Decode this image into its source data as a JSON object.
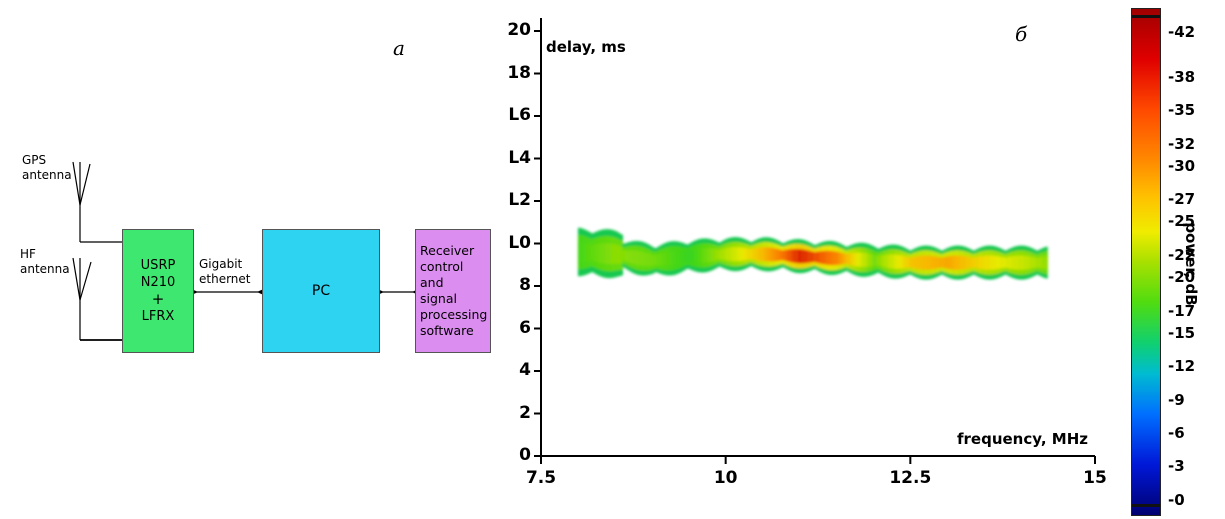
{
  "diagram": {
    "panel_letter": "a",
    "gps_antenna": [
      "GPS",
      "antenna"
    ],
    "hf_antenna": [
      "HF",
      "antenna"
    ],
    "usrp_block": [
      "USRP N210",
      "+",
      "LFRX"
    ],
    "link_label": [
      "Gigabit",
      "ethernet"
    ],
    "pc_block": "PC",
    "software_block": [
      "Receiver",
      "control and",
      "signal",
      "processing",
      "software"
    ],
    "colors": {
      "usrp": "#3ee870",
      "pc": "#2fd3f2",
      "software": "#dc8df0"
    }
  },
  "chart": {
    "panel_letter": "б",
    "y_ticks": [
      "0",
      "2",
      "4",
      "6",
      "8",
      "L0",
      "L2",
      "L4",
      "L6",
      "18",
      "20"
    ],
    "x_ticks": [
      "7.5",
      "10",
      "12.5",
      "15"
    ],
    "colorbar_ticks": [
      "0",
      "3",
      "6",
      "9",
      "12",
      "15",
      "17",
      "20",
      "22",
      "25",
      "27",
      "30",
      "32",
      "35",
      "38",
      "42"
    ]
  },
  "chart_data": {
    "type": "heatmap",
    "xlabel": "frequency, MHz",
    "ylabel": "delay, ms",
    "colorbar_label": "power, dB",
    "xlim": [
      7.5,
      15
    ],
    "ylim": [
      0,
      20
    ],
    "clim": [
      -1,
      43
    ],
    "grid": false,
    "trace": [
      {
        "x": 8.0,
        "y": 9.6,
        "power": 16
      },
      {
        "x": 8.5,
        "y": 9.5,
        "power": 19
      },
      {
        "x": 9.0,
        "y": 9.2,
        "power": 18
      },
      {
        "x": 9.5,
        "y": 9.4,
        "power": 15
      },
      {
        "x": 10.0,
        "y": 9.5,
        "power": 21
      },
      {
        "x": 10.5,
        "y": 9.5,
        "power": 28
      },
      {
        "x": 11.0,
        "y": 9.4,
        "power": 36
      },
      {
        "x": 11.5,
        "y": 9.3,
        "power": 31
      },
      {
        "x": 12.0,
        "y": 9.2,
        "power": 18
      },
      {
        "x": 12.5,
        "y": 9.1,
        "power": 27
      },
      {
        "x": 13.0,
        "y": 9.1,
        "power": 29
      },
      {
        "x": 13.5,
        "y": 9.1,
        "power": 25
      },
      {
        "x": 14.0,
        "y": 9.1,
        "power": 22
      },
      {
        "x": 14.35,
        "y": 9.1,
        "power": 19
      }
    ]
  }
}
